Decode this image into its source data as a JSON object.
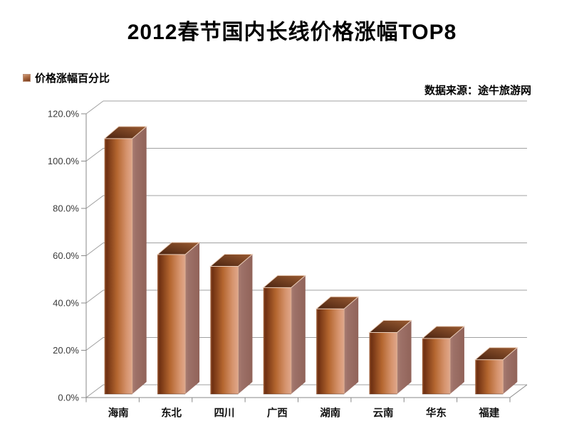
{
  "page": {
    "background": "#ffffff"
  },
  "header": {
    "title": "2012春节国内长线价格涨幅TOP8"
  },
  "legend": {
    "label": "价格涨幅百分比",
    "marker_color": "#a55a2e"
  },
  "source_note": "数据来源：途牛旅游网",
  "chart_data": {
    "type": "bar",
    "style": "3d-column",
    "title": "2012春节国内长线价格涨幅TOP8",
    "series_name": "价格涨幅百分比",
    "categories": [
      "海南",
      "东北",
      "四川",
      "广西",
      "湖南",
      "云南",
      "华东",
      "福建"
    ],
    "values": [
      108,
      59,
      54,
      45,
      36,
      26,
      23.5,
      14.5
    ],
    "unit": "%",
    "y_ticks": [
      "0.0%",
      "20.0%",
      "40.0%",
      "60.0%",
      "80.0%",
      "100.0%",
      "120.0%"
    ],
    "ylim": [
      0,
      120
    ],
    "y_tick_step": 20,
    "grid": true,
    "legend_position": "top-left",
    "source": "数据来源：途牛旅游网",
    "colors": {
      "bar_front_dark": "#6e2f11",
      "bar_front_mid": "#b4662f",
      "bar_front_light": "#e0a78b",
      "bar_side": "#9d7168",
      "bar_top_dark": "#4a2310",
      "bar_top_light": "#9a5b32",
      "grid_line": "#a0a0a0",
      "axis_line": "#898989",
      "tick_label": "#3a3a3a",
      "category_label": "#111111"
    }
  }
}
